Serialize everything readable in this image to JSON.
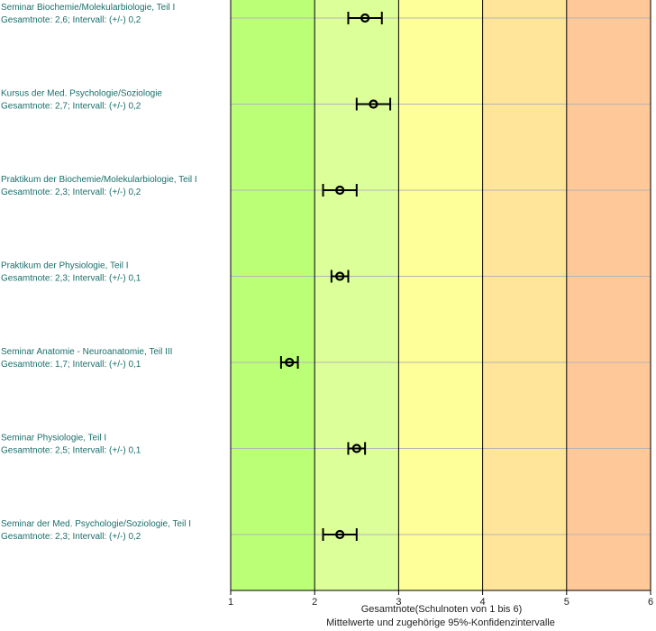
{
  "chart_data": {
    "type": "scatter",
    "xlabel": "Gesamtnote(Schulnoten von 1 bis 6)",
    "subtitle": "Mittelwerte und zugehörige 95%-Konfidenzintervalle",
    "xlim": [
      1,
      6
    ],
    "xticks": [
      "1",
      "2",
      "3",
      "4",
      "5",
      "6"
    ],
    "grid": true,
    "band_colors": [
      "#bbff77",
      "#ddff99",
      "#ffff99",
      "#ffe599",
      "#ffc899"
    ],
    "marker_color": "#000000",
    "items": [
      {
        "course": "Seminar Biochemie/Molekularbiologie, Teil I",
        "summary": "Gesamtnote: 2,6;  Intervall: (+/-) 0,2",
        "mean": 2.6,
        "ci": 0.2
      },
      {
        "course": "Kursus der Med. Psychologie/Soziologie",
        "summary": "Gesamtnote: 2,7;  Intervall: (+/-) 0,2",
        "mean": 2.7,
        "ci": 0.2
      },
      {
        "course": "Praktikum der Biochemie/Molekularbiologie, Teil I",
        "summary": "Gesamtnote: 2,3;  Intervall: (+/-) 0,2",
        "mean": 2.3,
        "ci": 0.2
      },
      {
        "course": "Praktikum der Physiologie, Teil I",
        "summary": "Gesamtnote: 2,3;  Intervall: (+/-) 0,1",
        "mean": 2.3,
        "ci": 0.1
      },
      {
        "course": "Seminar Anatomie - Neuroanatomie, Teil III",
        "summary": "Gesamtnote: 1,7;  Intervall: (+/-) 0,1",
        "mean": 1.7,
        "ci": 0.1
      },
      {
        "course": "Seminar Physiologie, Teil I",
        "summary": "Gesamtnote: 2,5;  Intervall: (+/-) 0,1",
        "mean": 2.5,
        "ci": 0.1
      },
      {
        "course": "Seminar der Med. Psychologie/Soziologie, Teil I",
        "summary": "Gesamtnote: 2,3;  Intervall: (+/-) 0,2",
        "mean": 2.3,
        "ci": 0.2
      }
    ]
  }
}
